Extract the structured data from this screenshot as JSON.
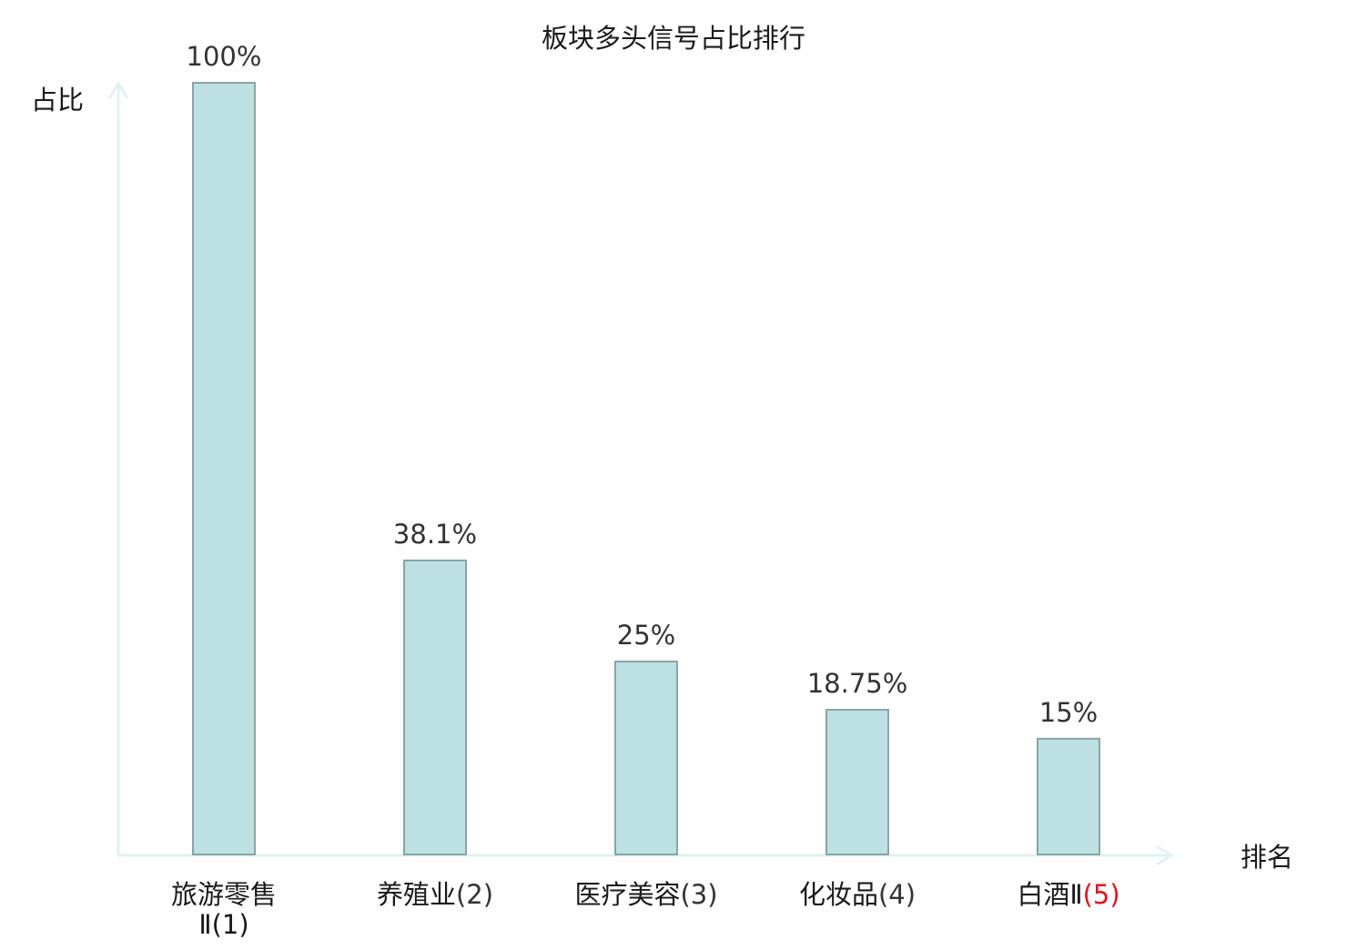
{
  "chart_data": {
    "type": "bar",
    "title": "板块多头信号占比排行",
    "xlabel": "排名",
    "ylabel": "占比",
    "ylim": [
      0,
      100
    ],
    "grid": false,
    "categories": [
      {
        "name": "旅游零售Ⅱ",
        "rank": "(1)",
        "highlight": false
      },
      {
        "name": "养殖业",
        "rank": "(2)",
        "highlight": false
      },
      {
        "name": "医疗美容",
        "rank": "(3)",
        "highlight": false
      },
      {
        "name": "化妆品",
        "rank": "(4)",
        "highlight": false
      },
      {
        "name": "白酒Ⅱ",
        "rank": "(5)",
        "highlight": true
      }
    ],
    "values": [
      100,
      38.1,
      25,
      18.75,
      15
    ],
    "value_labels": [
      "100%",
      "38.1%",
      "25%",
      "18.75%",
      "15%"
    ]
  },
  "colors": {
    "bar_fill": "#bde1e3",
    "bar_stroke": "#8aa3a5",
    "axis": "#e1f2ef",
    "highlight_text": "#e0141e",
    "text": "#1a1a1a",
    "value_text": "#333333"
  }
}
